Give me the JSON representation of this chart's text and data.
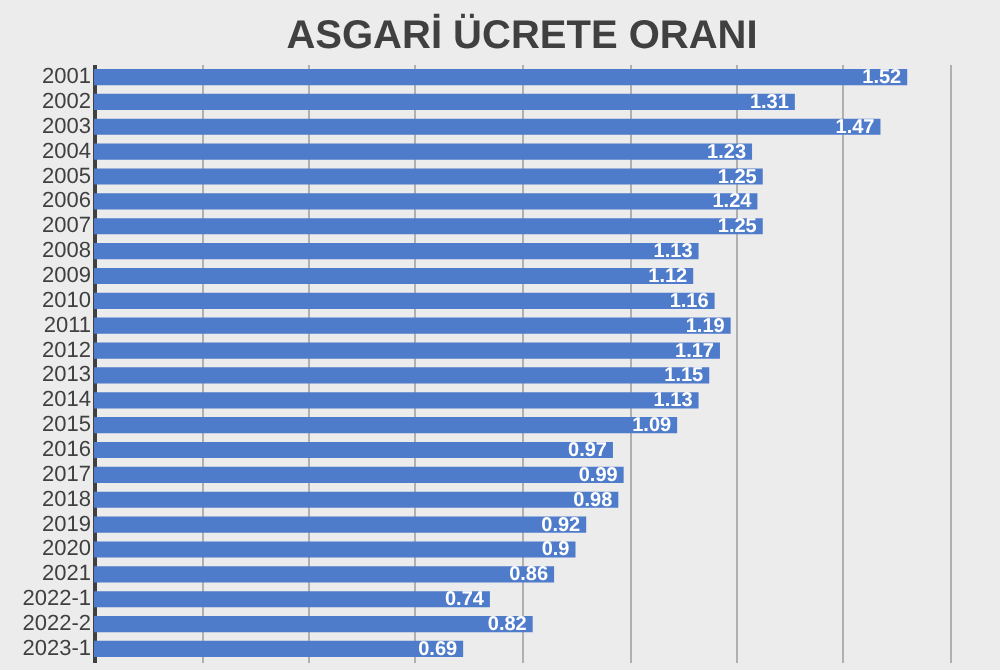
{
  "chart_data": {
    "type": "bar",
    "orientation": "horizontal",
    "title": "ASGARİ ÜCRETE ORANI",
    "categories": [
      "2001",
      "2002",
      "2003",
      "2004",
      "2005",
      "2006",
      "2007",
      "2008",
      "2009",
      "2010",
      "2011",
      "2012",
      "2013",
      "2014",
      "2015",
      "2016",
      "2017",
      "2018",
      "2019",
      "2020",
      "2021",
      "2022-1",
      "2022-2",
      "2023-1"
    ],
    "values": [
      1.52,
      1.31,
      1.47,
      1.23,
      1.25,
      1.24,
      1.25,
      1.13,
      1.12,
      1.16,
      1.19,
      1.17,
      1.15,
      1.13,
      1.09,
      0.97,
      0.99,
      0.98,
      0.92,
      0.9,
      0.86,
      0.74,
      0.82,
      0.69
    ],
    "color": "#4f7bcb",
    "data_labels": true,
    "xlim": [
      0,
      1.6
    ],
    "xticks": [
      {
        "value": 0,
        "label": null
      },
      {
        "value": 0.2,
        "label": null
      },
      {
        "value": 0.4,
        "label": null
      },
      {
        "value": 0.6,
        "label": null
      },
      {
        "value": 0.8,
        "label": null
      },
      {
        "value": 1.0,
        "label": null
      },
      {
        "value": 1.2,
        "label": null
      },
      {
        "value": 1.4,
        "label": null
      },
      {
        "value": 1.6,
        "label": null
      }
    ],
    "grid": "x",
    "tick_labels": "y"
  }
}
